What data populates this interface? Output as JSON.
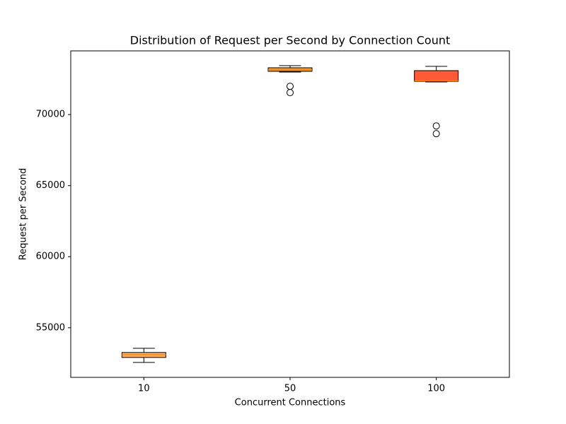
{
  "chart_data": {
    "type": "box",
    "title": "Distribution of Request per Second by Connection Count",
    "x_label": "Concurrent Connections",
    "y_label": "Request per Second",
    "categories": [
      "10",
      "50",
      "100"
    ],
    "boxes": [
      {
        "min": 52560,
        "q1": 52910,
        "median": 53110,
        "q3": 53260,
        "max": 53555,
        "outliers": [],
        "color": "#ffb366"
      },
      {
        "min": 72990,
        "q1": 73040,
        "median": 73140,
        "q3": 73290,
        "max": 73440,
        "outliers": [
          71990,
          71545
        ],
        "color": "#f5a031"
      },
      {
        "min": 72290,
        "q1": 72330,
        "median": 72370,
        "q3": 73090,
        "max": 73390,
        "outliers": [
          69200,
          68655
        ],
        "color": "#ff5a36"
      }
    ],
    "median_color": "#ff7f0e",
    "ylim": [
      51510,
      74480
    ],
    "yticks": [
      55000,
      60000,
      65000,
      70000
    ]
  }
}
